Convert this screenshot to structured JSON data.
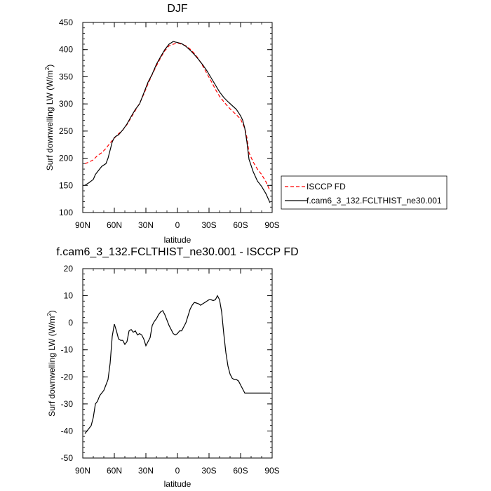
{
  "chart_data": [
    {
      "type": "line",
      "title": "DJF",
      "xlabel": "latitude",
      "ylabel": "Surf downwelling LW (W/m²)",
      "ylabel_text": "Surf downwelling LW (W/m",
      "ylabel_sup": "2",
      "ylabel_end": ")",
      "xlim": [
        90,
        -90
      ],
      "ylim": [
        100,
        450
      ],
      "x_ticks": [
        90,
        60,
        30,
        0,
        -30,
        -60,
        -90
      ],
      "x_tick_labels": [
        "90N",
        "60N",
        "30N",
        "0",
        "30S",
        "60S",
        "90S"
      ],
      "y_ticks": [
        100,
        150,
        200,
        250,
        300,
        350,
        400,
        450
      ],
      "y_tick_labels": [
        "100",
        "150",
        "200",
        "250",
        "300",
        "350",
        "400",
        "450"
      ],
      "legend_position": "right",
      "series": [
        {
          "name": "ISCCP FD",
          "color": "#ff0000",
          "dash": "dashed",
          "x": [
            88,
            84,
            80,
            76,
            72,
            68,
            64,
            60,
            56,
            52,
            48,
            44,
            40,
            36,
            32,
            28,
            24,
            20,
            16,
            12,
            8,
            4,
            0,
            -4,
            -8,
            -12,
            -16,
            -20,
            -24,
            -28,
            -32,
            -36,
            -40,
            -44,
            -48,
            -52,
            -56,
            -60,
            -64,
            -66,
            -68,
            -72,
            -76,
            -80,
            -84,
            -88
          ],
          "y": [
            190,
            193,
            197,
            205,
            210,
            218,
            228,
            237,
            245,
            252,
            262,
            275,
            288,
            301,
            318,
            337,
            354,
            370,
            385,
            398,
            407,
            410,
            412,
            410,
            407,
            401,
            393,
            383,
            370,
            356,
            342,
            327,
            314,
            304,
            295,
            287,
            280,
            272,
            255,
            238,
            210,
            193,
            180,
            170,
            157,
            140
          ]
        },
        {
          "name": "f.cam6_3_132.FCLTHIST_ne30.001",
          "color": "#000000",
          "dash": "solid",
          "x": [
            88,
            84,
            80,
            78,
            76,
            72,
            68,
            66,
            64,
            62,
            60,
            58,
            56,
            52,
            48,
            44,
            40,
            36,
            32,
            28,
            24,
            20,
            16,
            12,
            8,
            4,
            2,
            0,
            -4,
            -8,
            -12,
            -16,
            -20,
            -24,
            -28,
            -32,
            -36,
            -40,
            -44,
            -48,
            -52,
            -56,
            -60,
            -62,
            -64,
            -66,
            -68,
            -72,
            -76,
            -80,
            -84,
            -88
          ],
          "y": [
            150,
            155,
            161,
            170,
            175,
            185,
            190,
            200,
            215,
            230,
            238,
            241,
            243,
            252,
            263,
            277,
            290,
            300,
            320,
            340,
            355,
            373,
            387,
            400,
            410,
            415,
            414,
            413,
            411,
            406,
            399,
            391,
            382,
            372,
            361,
            348,
            335,
            322,
            312,
            304,
            297,
            290,
            278,
            270,
            255,
            230,
            198,
            175,
            158,
            148,
            135,
            118
          ]
        }
      ]
    },
    {
      "type": "line",
      "title": "f.cam6_3_132.FCLTHIST_ne30.001 - ISCCP FD",
      "xlabel": "latitude",
      "ylabel": "Surf downwelling LW (W/m²)",
      "ylabel_text": "Surf downwelling LW (W/m",
      "ylabel_sup": "2",
      "ylabel_end": ")",
      "xlim": [
        90,
        -90
      ],
      "ylim": [
        -50,
        20
      ],
      "x_ticks": [
        90,
        60,
        30,
        0,
        -30,
        -60,
        -90
      ],
      "x_tick_labels": [
        "90N",
        "60N",
        "30N",
        "0",
        "30S",
        "60S",
        "90S"
      ],
      "y_ticks": [
        -50,
        -40,
        -30,
        -20,
        -10,
        0,
        10,
        20
      ],
      "y_tick_labels": [
        "-50",
        "-40",
        "-30",
        "-20",
        "-10",
        "0",
        "10",
        "20"
      ],
      "series": [
        {
          "color": "#000000",
          "dash": "solid",
          "x": [
            88,
            84,
            82,
            80,
            78,
            76,
            74,
            72,
            70,
            68,
            66,
            64,
            62,
            60,
            58,
            56,
            54,
            52,
            50,
            48,
            46,
            44,
            42,
            40,
            38,
            36,
            34,
            32,
            30,
            28,
            26,
            24,
            22,
            20,
            18,
            16,
            14,
            12,
            10,
            8,
            6,
            4,
            2,
            0,
            -2,
            -4,
            -6,
            -8,
            -10,
            -12,
            -14,
            -16,
            -18,
            -20,
            -22,
            -24,
            -26,
            -28,
            -30,
            -32,
            -34,
            -36,
            -38,
            -40,
            -42,
            -44,
            -46,
            -48,
            -50,
            -52,
            -54,
            -56,
            -58,
            -60,
            -62,
            -64,
            -66,
            -68,
            -70,
            -72,
            -74,
            -76,
            -78,
            -80,
            -82,
            -84,
            -86,
            -88
          ],
          "y": [
            -41,
            -39,
            -38,
            -35,
            -30,
            -29,
            -27,
            -26,
            -25,
            -23,
            -21,
            -15,
            -5,
            -0.5,
            -3,
            -6,
            -6.5,
            -6.5,
            -8,
            -7,
            -3,
            -2.5,
            -3.5,
            -3,
            -4.5,
            -4,
            -4.5,
            -6,
            -8.5,
            -7,
            -5.5,
            -1,
            0.5,
            1.5,
            3,
            4,
            4.5,
            3,
            1,
            -1,
            -2.5,
            -4,
            -4.5,
            -4,
            -3,
            -3,
            -1.5,
            0,
            2.5,
            5,
            6.5,
            7.5,
            7.3,
            7,
            6.5,
            7,
            7.5,
            8,
            8.5,
            8.5,
            8.2,
            8.5,
            10,
            8.5,
            4,
            -4,
            -11,
            -16,
            -19,
            -20.5,
            -21,
            -21,
            -21.5,
            -23,
            -24.5,
            -26,
            -26,
            -26,
            -26,
            -26,
            -26,
            -26,
            -26,
            -26,
            -26,
            -26,
            -26,
            -26
          ]
        }
      ]
    }
  ]
}
